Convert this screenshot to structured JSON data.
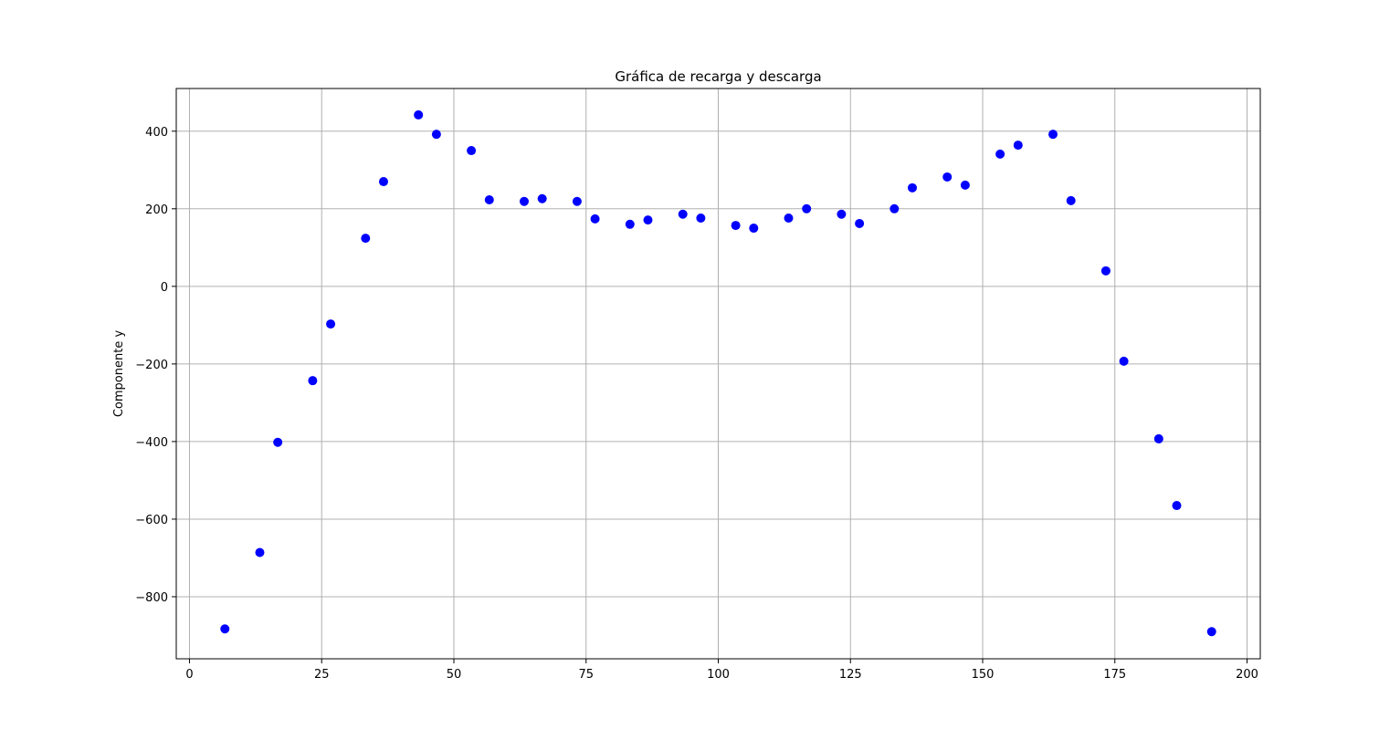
{
  "chart_data": {
    "type": "scatter",
    "title": "Gráfica de recarga y descarga",
    "xlabel": "",
    "ylabel": "Componente y",
    "xlim": [
      -2.5,
      202.5
    ],
    "ylim": [
      -960,
      510
    ],
    "xticks": [
      0,
      25,
      50,
      75,
      100,
      125,
      150,
      175,
      200
    ],
    "yticks": [
      -800,
      -600,
      -400,
      -200,
      0,
      200,
      400
    ],
    "ytick_labels": [
      "−800",
      "−600",
      "−400",
      "−200",
      "0",
      "200",
      "400"
    ],
    "grid": true,
    "marker_color": "#0000ff",
    "points": [
      {
        "x": 6.7,
        "y": -883
      },
      {
        "x": 13.3,
        "y": -686
      },
      {
        "x": 16.7,
        "y": -402
      },
      {
        "x": 23.3,
        "y": -243
      },
      {
        "x": 26.7,
        "y": -97
      },
      {
        "x": 33.3,
        "y": 124
      },
      {
        "x": 36.7,
        "y": 270
      },
      {
        "x": 43.3,
        "y": 442
      },
      {
        "x": 46.7,
        "y": 392
      },
      {
        "x": 53.3,
        "y": 350
      },
      {
        "x": 56.7,
        "y": 223
      },
      {
        "x": 63.3,
        "y": 219
      },
      {
        "x": 66.7,
        "y": 226
      },
      {
        "x": 73.3,
        "y": 219
      },
      {
        "x": 76.7,
        "y": 174
      },
      {
        "x": 83.3,
        "y": 160
      },
      {
        "x": 86.7,
        "y": 171
      },
      {
        "x": 93.3,
        "y": 186
      },
      {
        "x": 96.7,
        "y": 176
      },
      {
        "x": 103.3,
        "y": 157
      },
      {
        "x": 106.7,
        "y": 150
      },
      {
        "x": 113.3,
        "y": 176
      },
      {
        "x": 116.7,
        "y": 200
      },
      {
        "x": 123.3,
        "y": 186
      },
      {
        "x": 126.7,
        "y": 162
      },
      {
        "x": 133.3,
        "y": 200
      },
      {
        "x": 136.7,
        "y": 254
      },
      {
        "x": 143.3,
        "y": 282
      },
      {
        "x": 146.7,
        "y": 261
      },
      {
        "x": 153.3,
        "y": 341
      },
      {
        "x": 156.7,
        "y": 364
      },
      {
        "x": 163.3,
        "y": 392
      },
      {
        "x": 166.7,
        "y": 221
      },
      {
        "x": 173.3,
        "y": 40
      },
      {
        "x": 176.7,
        "y": -193
      },
      {
        "x": 183.3,
        "y": -393
      },
      {
        "x": 186.7,
        "y": -565
      },
      {
        "x": 193.3,
        "y": -890
      }
    ]
  }
}
